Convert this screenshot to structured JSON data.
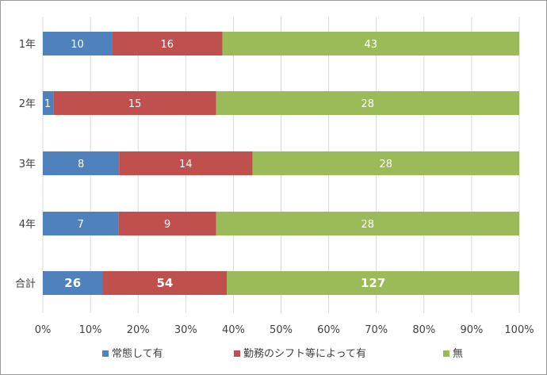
{
  "chart_data": {
    "type": "bar",
    "orientation": "horizontal",
    "stacking": "percent",
    "categories": [
      "1年",
      "2年",
      "3年",
      "4年",
      "合計"
    ],
    "series": [
      {
        "name": "常態して有",
        "values": [
          10,
          1,
          8,
          7,
          26
        ],
        "color": "#4f81bd"
      },
      {
        "name": "勤務のシフト等によって有",
        "values": [
          16,
          15,
          14,
          9,
          54
        ],
        "color": "#c0504d"
      },
      {
        "name": "無",
        "values": [
          43,
          28,
          28,
          28,
          127
        ],
        "color": "#9bbb59"
      }
    ],
    "x_ticks": [
      "0%",
      "10%",
      "20%",
      "30%",
      "40%",
      "50%",
      "60%",
      "70%",
      "80%",
      "90%",
      "100%"
    ],
    "xlim": [
      0,
      100
    ],
    "grid": true,
    "legend_position": "bottom",
    "bold_categories": [
      "合計"
    ]
  }
}
